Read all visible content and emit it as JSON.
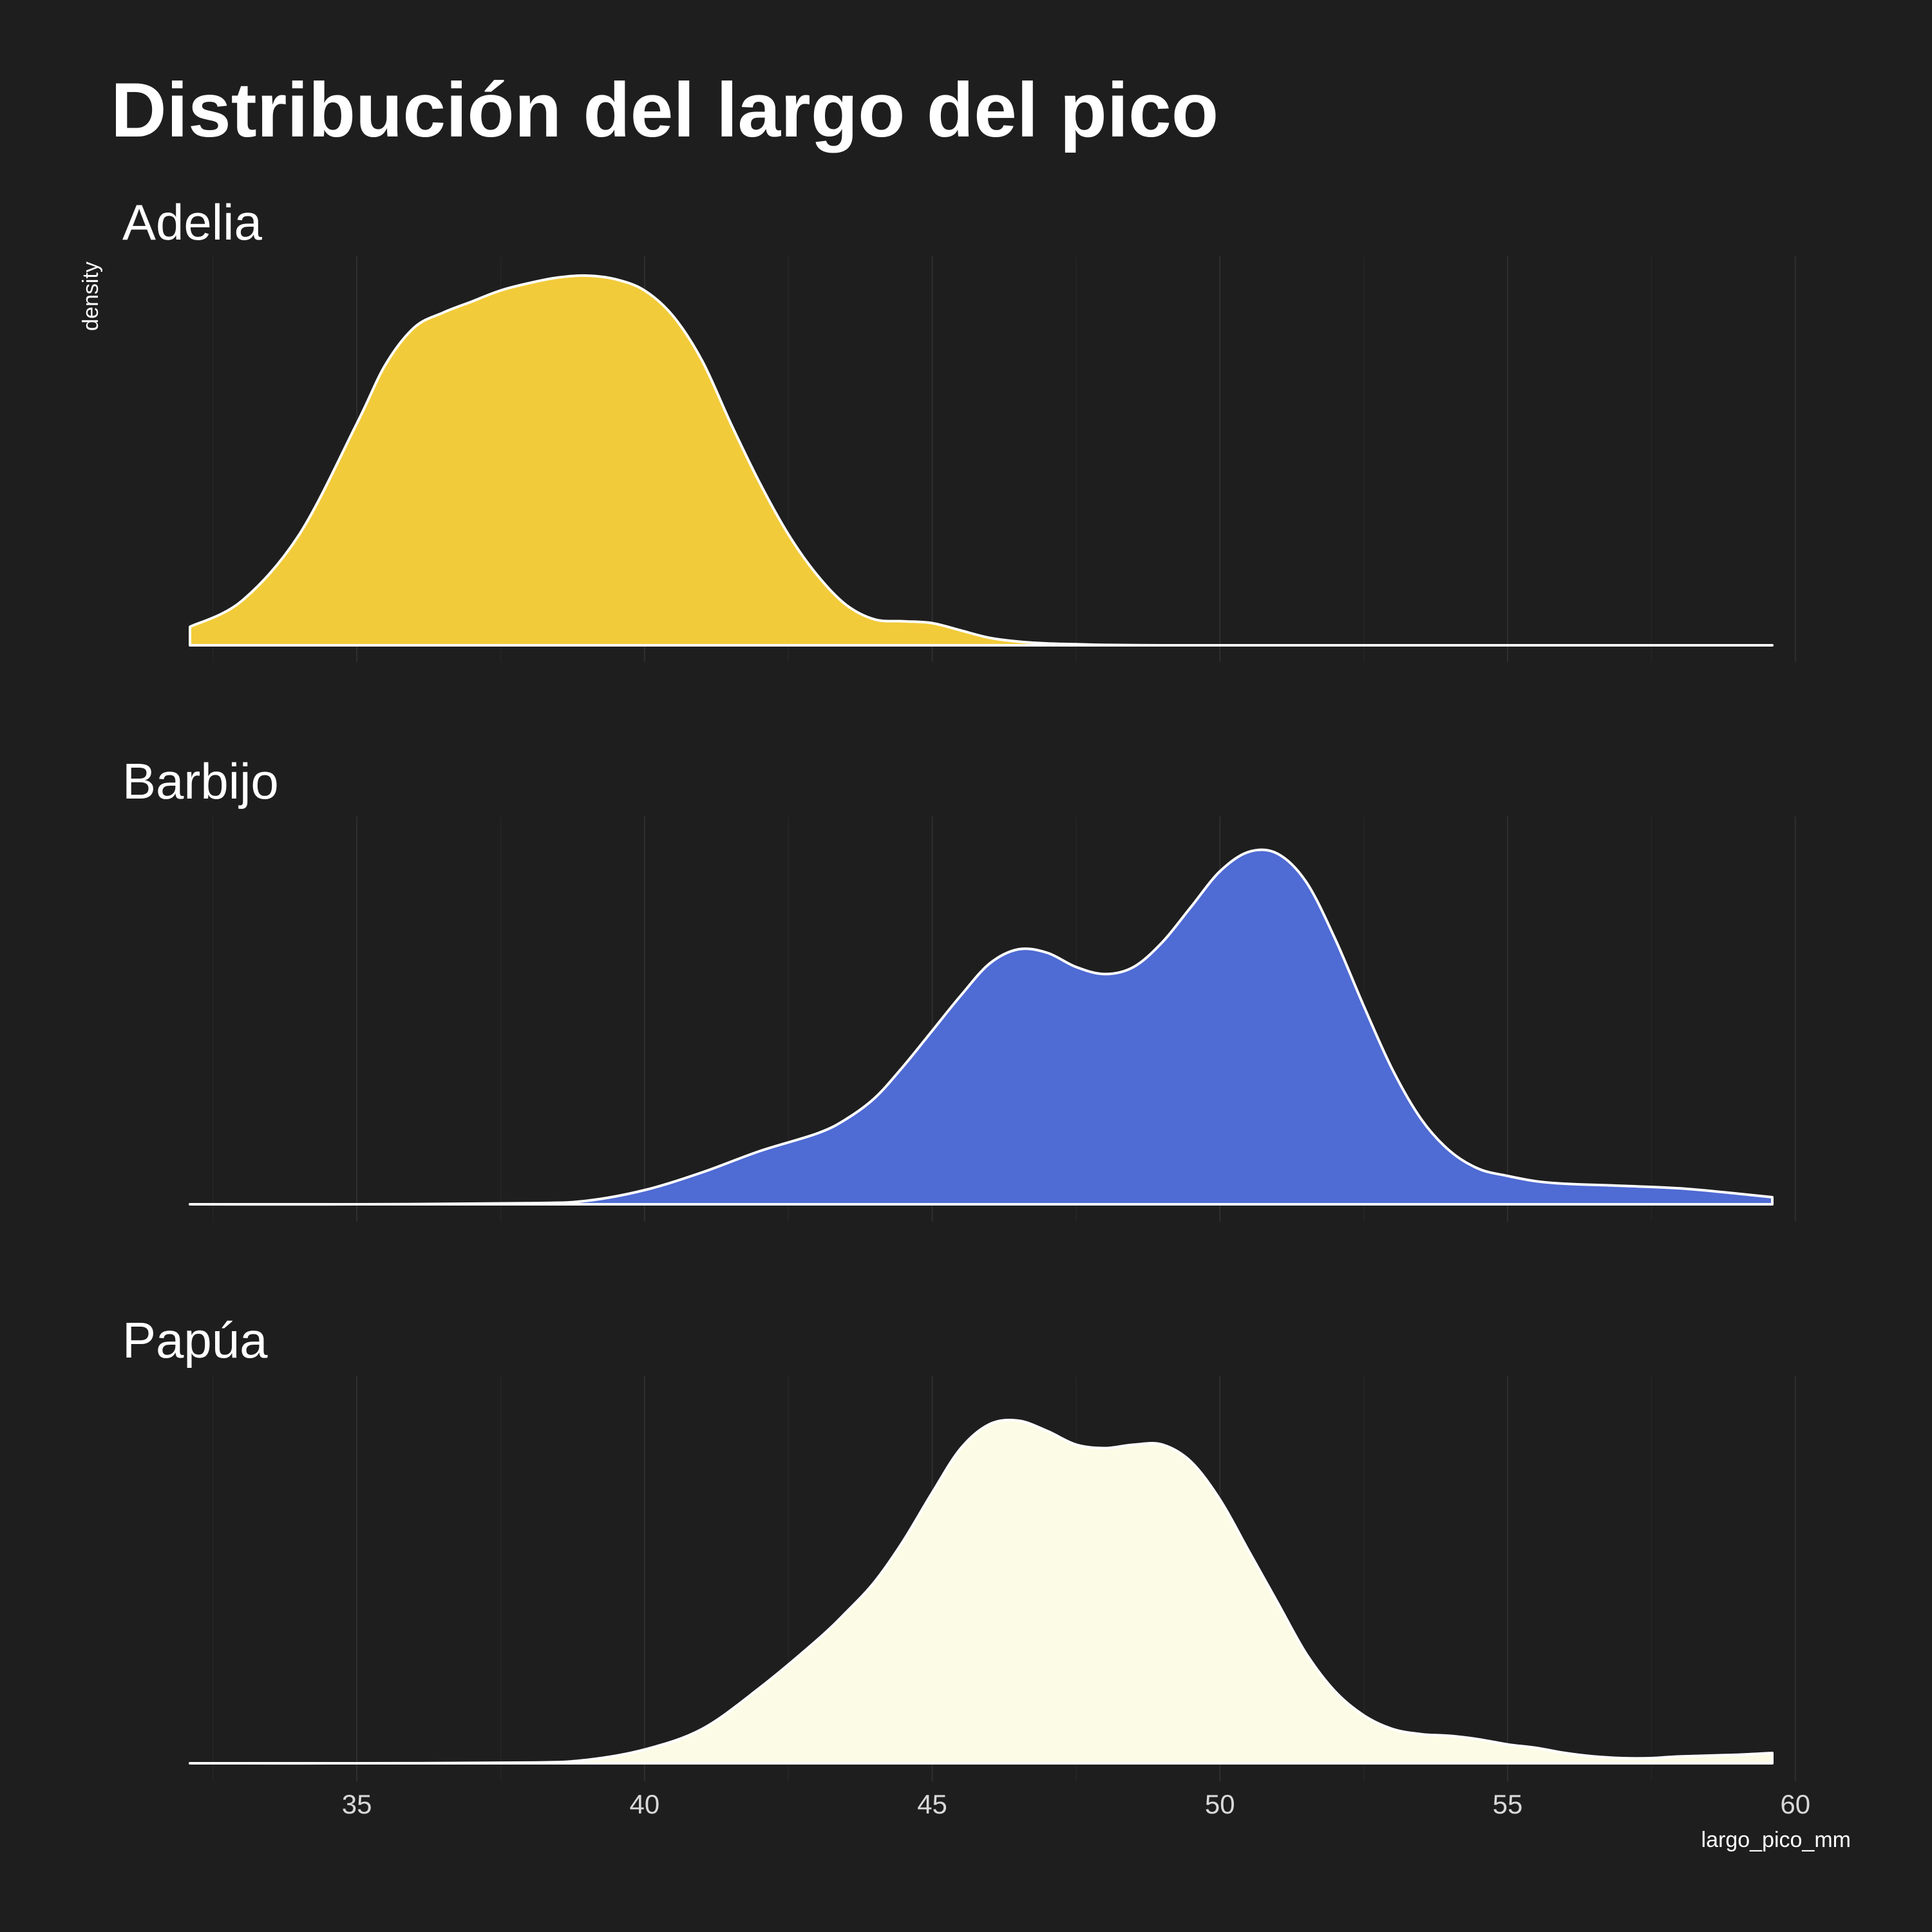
{
  "title": "Distribución del largo del pico",
  "chart_data": {
    "type": "area",
    "title": "Distribución del largo del pico",
    "xlabel": "largo_pico_mm",
    "ylabel": "density",
    "xlim": [
      32.1,
      59.6
    ],
    "x_ticks": [
      35,
      40,
      45,
      50,
      55,
      60
    ],
    "x_tick_labels": [
      "35",
      "40",
      "45",
      "50",
      "55",
      "60"
    ],
    "grid": "vertical only",
    "facets": "stacked vertically, shared x axis",
    "density_scale": "relative (each panel scaled to its own peak = 1)",
    "series": [
      {
        "name": "Adelia",
        "color": "#f2cb3a",
        "x": [
          32.1,
          33,
          34,
          35,
          35.5,
          36,
          36.5,
          37,
          37.5,
          38,
          38.5,
          39,
          39.5,
          40,
          40.5,
          41,
          41.5,
          42,
          42.5,
          43,
          43.5,
          44,
          44.5,
          45,
          45.5,
          46,
          46.5,
          47,
          47.5,
          48,
          49,
          50,
          52,
          55,
          59.6
        ],
        "y": [
          0.05,
          0.12,
          0.3,
          0.6,
          0.76,
          0.86,
          0.9,
          0.93,
          0.96,
          0.98,
          0.995,
          1.0,
          0.99,
          0.96,
          0.89,
          0.77,
          0.6,
          0.44,
          0.3,
          0.19,
          0.11,
          0.07,
          0.065,
          0.06,
          0.04,
          0.02,
          0.01,
          0.005,
          0.003,
          0.001,
          0.0,
          0.0,
          0.0,
          0.0,
          0.0
        ]
      },
      {
        "name": "Barbijo",
        "color": "#4f6bd4",
        "x": [
          32.1,
          35,
          38,
          39,
          40,
          41,
          42,
          43,
          43.5,
          44,
          44.5,
          45,
          45.5,
          46,
          46.5,
          47,
          47.5,
          48,
          48.5,
          49,
          49.5,
          50,
          50.5,
          51,
          51.5,
          52,
          52.5,
          53,
          53.5,
          54,
          54.5,
          55,
          55.5,
          56,
          57,
          58,
          59,
          59.6
        ],
        "y": [
          0.0,
          0.0,
          0.003,
          0.01,
          0.04,
          0.09,
          0.15,
          0.2,
          0.24,
          0.3,
          0.39,
          0.49,
          0.59,
          0.68,
          0.72,
          0.71,
          0.67,
          0.65,
          0.67,
          0.74,
          0.84,
          0.94,
          0.995,
          0.99,
          0.91,
          0.75,
          0.56,
          0.38,
          0.24,
          0.15,
          0.1,
          0.08,
          0.065,
          0.058,
          0.052,
          0.045,
          0.03,
          0.02
        ]
      },
      {
        "name": "Papúa",
        "color": "#fcfbe6",
        "x": [
          32.1,
          35,
          38,
          39,
          40,
          41,
          42,
          43,
          43.5,
          44,
          44.5,
          45,
          45.5,
          46,
          46.5,
          47,
          47.5,
          48,
          48.5,
          49,
          49.5,
          50,
          50.5,
          51,
          51.5,
          52,
          52.5,
          53,
          53.5,
          54,
          54.5,
          55,
          55.5,
          56,
          56.5,
          57,
          57.5,
          58,
          59,
          59.6
        ],
        "y": [
          0.0,
          0.0,
          0.002,
          0.01,
          0.04,
          0.1,
          0.22,
          0.36,
          0.44,
          0.53,
          0.65,
          0.79,
          0.92,
          0.99,
          1.0,
          0.97,
          0.93,
          0.92,
          0.93,
          0.93,
          0.88,
          0.77,
          0.62,
          0.47,
          0.32,
          0.21,
          0.14,
          0.1,
          0.085,
          0.08,
          0.07,
          0.055,
          0.045,
          0.03,
          0.02,
          0.015,
          0.015,
          0.02,
          0.025,
          0.03
        ]
      }
    ]
  },
  "colors": {
    "background": "#1e1e1e",
    "text": "#ffffff",
    "tick_text": "#d9d9d9",
    "outline": "#ffffff"
  }
}
